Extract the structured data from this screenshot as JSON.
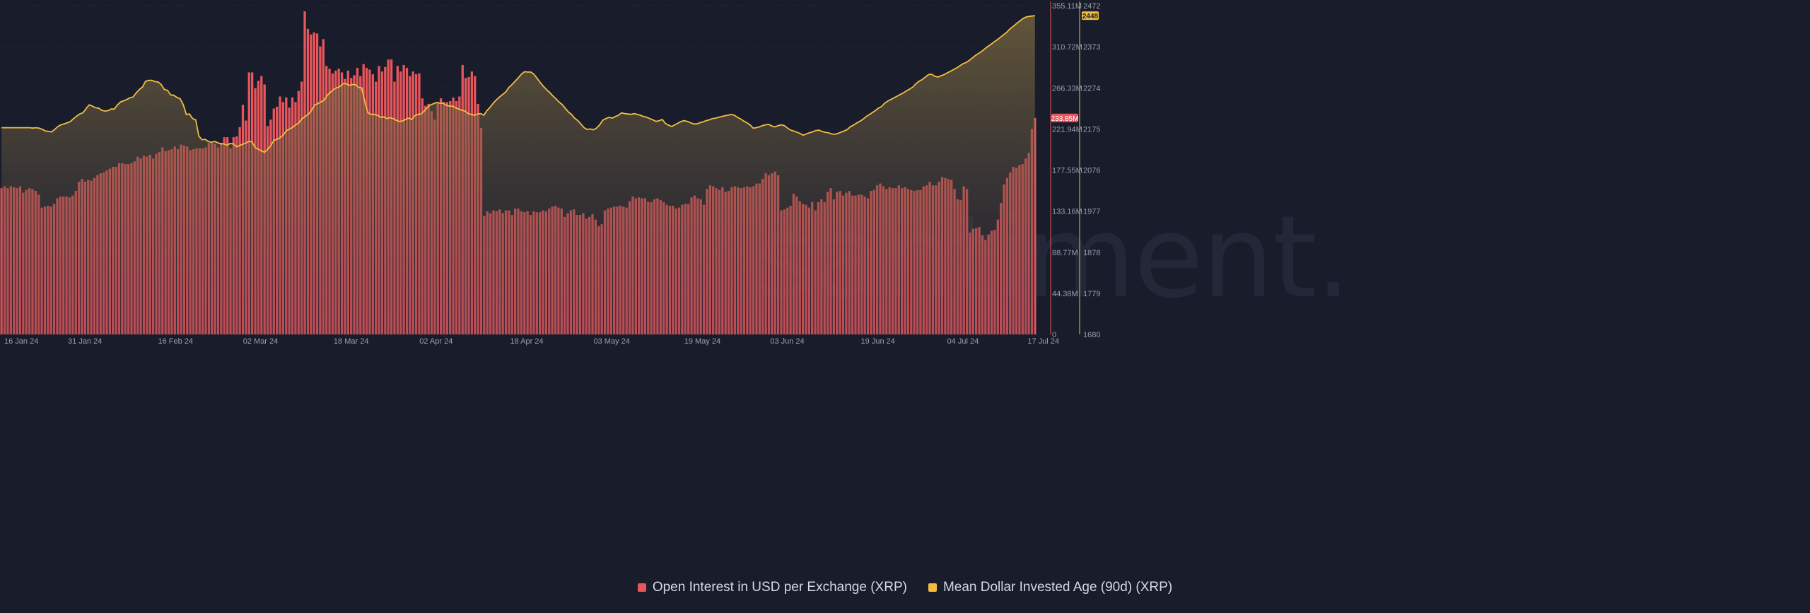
{
  "watermark": "santiment.",
  "legend": {
    "oi_label": "Open Interest in USD per Exchange (XRP)",
    "mdia_label": "Mean Dollar Invested Age (90d) (XRP)"
  },
  "colors": {
    "background": "#181c2b",
    "oi": "#e8565c",
    "mdia": "#f2bd42",
    "grid": "#2a3043"
  },
  "chart_data": {
    "type": "bar",
    "x_start": "2024-01-16",
    "x_end": "2024-07-17",
    "x_tick_labels": [
      "16 Jan 24",
      "31 Jan 24",
      "16 Feb 24",
      "02 Mar 24",
      "18 Mar 24",
      "02 Apr 24",
      "18 Apr 24",
      "03 May 24",
      "19 May 24",
      "03 Jun 24",
      "19 Jun 24",
      "04 Jul 24",
      "17 Jul 24"
    ],
    "y_left": {
      "ylim": [
        0,
        355.11
      ],
      "unit": "M",
      "tick_labels": [
        "355.11M",
        "310.72M",
        "266.33M",
        "221.94M",
        "177.55M",
        "133.16M",
        "88.77M",
        "44.38M",
        "0"
      ],
      "current_badge": "233.85M"
    },
    "y_right": {
      "ylim": [
        1680,
        2472
      ],
      "tick_labels": [
        "2472",
        "2373",
        "2274",
        "2175",
        "2076",
        "1977",
        "1878",
        "1779",
        "1680"
      ],
      "current_badge": "2448"
    },
    "series": [
      {
        "name": "Open Interest in USD per Exchange (XRP)",
        "kind": "bar",
        "axis": "left",
        "values": [
          158,
          160,
          158,
          160,
          159,
          158,
          160,
          153,
          156,
          158,
          157,
          155,
          151,
          137,
          138,
          139,
          138,
          141,
          147,
          149,
          149,
          149,
          148,
          150,
          155,
          165,
          168,
          165,
          167,
          166,
          169,
          172,
          174,
          175,
          177,
          179,
          181,
          181,
          185,
          185,
          184,
          184,
          185,
          187,
          192,
          190,
          193,
          192,
          194,
          190,
          195,
          197,
          202,
          198,
          199,
          200,
          203,
          200,
          205,
          204,
          203,
          199,
          200,
          201,
          201,
          201,
          202,
          207,
          207,
          206,
          202,
          207,
          213,
          213,
          201,
          213,
          214,
          224,
          248,
          231,
          283,
          283,
          266,
          274,
          279,
          270,
          225,
          232,
          244,
          246,
          257,
          251,
          256,
          245,
          256,
          251,
          263,
          273,
          349,
          330,
          324,
          326,
          325,
          311,
          319,
          290,
          287,
          282,
          285,
          287,
          283,
          276,
          285,
          277,
          280,
          288,
          279,
          292,
          288,
          286,
          281,
          273,
          290,
          284,
          289,
          297,
          297,
          273,
          290,
          284,
          291,
          288,
          279,
          284,
          281,
          282,
          255,
          247,
          249,
          241,
          232,
          250,
          255,
          251,
          251,
          252,
          256,
          252,
          257,
          291,
          277,
          278,
          284,
          279,
          249,
          223,
          128,
          133,
          131,
          134,
          133,
          135,
          131,
          134,
          134,
          129,
          136,
          136,
          133,
          132,
          133,
          129,
          133,
          132,
          132,
          134,
          133,
          136,
          138,
          139,
          137,
          136,
          127,
          131,
          134,
          135,
          129,
          129,
          131,
          125,
          127,
          130,
          124,
          117,
          119,
          134,
          136,
          137,
          138,
          138,
          139,
          138,
          137,
          144,
          149,
          147,
          148,
          147,
          147,
          143,
          143,
          146,
          147,
          145,
          143,
          140,
          139,
          139,
          136,
          137,
          140,
          141,
          141,
          148,
          150,
          147,
          146,
          140,
          157,
          161,
          160,
          158,
          156,
          159,
          154,
          155,
          159,
          160,
          159,
          158,
          159,
          160,
          159,
          160,
          163,
          163,
          168,
          174,
          172,
          174,
          176,
          172,
          134,
          135,
          137,
          139,
          152,
          149,
          144,
          141,
          140,
          137,
          143,
          134,
          143,
          146,
          143,
          154,
          158,
          146,
          154,
          155,
          150,
          153,
          155,
          150,
          150,
          151,
          151,
          149,
          147,
          155,
          156,
          161,
          163,
          160,
          157,
          159,
          158,
          158,
          161,
          158,
          159,
          157,
          156,
          155,
          156,
          156,
          160,
          161,
          165,
          161,
          161,
          165,
          170,
          169,
          168,
          167,
          157,
          146,
          145,
          160,
          157,
          110,
          114,
          115,
          116,
          107,
          102,
          108,
          112,
          113,
          124,
          142,
          162,
          169,
          175,
          181,
          180,
          183,
          184,
          190,
          196,
          222,
          233.85
        ]
      },
      {
        "name": "Mean Dollar Invested Age (90d) (XRP)",
        "kind": "area",
        "axis": "right",
        "values": [
          2178,
          2178,
          2178,
          2178,
          2178,
          2178,
          2178,
          2178,
          2178,
          2178,
          2177,
          2178,
          2177,
          2174,
          2170,
          2169,
          2168,
          2174,
          2181,
          2185,
          2187,
          2190,
          2193,
          2200,
          2206,
          2211,
          2214,
          2224,
          2233,
          2230,
          2226,
          2225,
          2220,
          2218,
          2219,
          2223,
          2223,
          2233,
          2240,
          2243,
          2246,
          2250,
          2252,
          2262,
          2270,
          2276,
          2290,
          2292,
          2292,
          2289,
          2288,
          2282,
          2270,
          2268,
          2257,
          2256,
          2251,
          2248,
          2234,
          2210,
          2211,
          2200,
          2197,
          2158,
          2149,
          2150,
          2145,
          2143,
          2145,
          2142,
          2139,
          2139,
          2136,
          2140,
          2139,
          2132,
          2135,
          2138,
          2141,
          2145,
          2144,
          2130,
          2126,
          2122,
          2119,
          2126,
          2135,
          2148,
          2150,
          2154,
          2161,
          2171,
          2175,
          2179,
          2185,
          2190,
          2200,
          2205,
          2211,
          2220,
          2233,
          2236,
          2240,
          2244,
          2256,
          2263,
          2270,
          2274,
          2277,
          2284,
          2284,
          2280,
          2282,
          2282,
          2275,
          2274,
          2240,
          2214,
          2210,
          2210,
          2208,
          2203,
          2204,
          2200,
          2202,
          2200,
          2196,
          2193,
          2194,
          2198,
          2201,
          2198,
          2207,
          2210,
          2211,
          2218,
          2227,
          2233,
          2236,
          2239,
          2237,
          2237,
          2232,
          2230,
          2230,
          2226,
          2223,
          2220,
          2218,
          2212,
          2210,
          2208,
          2211,
          2212,
          2208,
          2219,
          2227,
          2237,
          2245,
          2252,
          2258,
          2264,
          2275,
          2282,
          2290,
          2298,
          2307,
          2313,
          2312,
          2312,
          2307,
          2297,
          2287,
          2278,
          2270,
          2263,
          2255,
          2248,
          2240,
          2234,
          2225,
          2216,
          2210,
          2201,
          2195,
          2187,
          2178,
          2174,
          2175,
          2173,
          2177,
          2185,
          2196,
          2200,
          2203,
          2201,
          2205,
          2208,
          2214,
          2212,
          2211,
          2210,
          2212,
          2210,
          2208,
          2205,
          2203,
          2200,
          2197,
          2193,
          2195,
          2198,
          2188,
          2184,
          2181,
          2185,
          2189,
          2193,
          2195,
          2193,
          2190,
          2187,
          2187,
          2190,
          2192,
          2195,
          2197,
          2200,
          2201,
          2203,
          2205,
          2207,
          2208,
          2210,
          2208,
          2203,
          2199,
          2194,
          2190,
          2185,
          2177,
          2178,
          2180,
          2183,
          2185,
          2186,
          2182,
          2180,
          2183,
          2185,
          2183,
          2177,
          2172,
          2170,
          2167,
          2164,
          2160,
          2163,
          2166,
          2168,
          2171,
          2172,
          2169,
          2167,
          2166,
          2163,
          2162,
          2164,
          2167,
          2170,
          2173,
          2180,
          2184,
          2189,
          2193,
          2198,
          2204,
          2209,
          2214,
          2219,
          2225,
          2229,
          2237,
          2242,
          2246,
          2250,
          2254,
          2258,
          2262,
          2267,
          2271,
          2276,
          2284,
          2290,
          2294,
          2300,
          2306,
          2307,
          2302,
          2300,
          2303,
          2306,
          2310,
          2314,
          2318,
          2322,
          2327,
          2332,
          2335,
          2340,
          2346,
          2352,
          2357,
          2362,
          2368,
          2374,
          2379,
          2385,
          2390,
          2396,
          2402,
          2408,
          2416,
          2422,
          2428,
          2434,
          2440,
          2444,
          2446,
          2447,
          2448
        ]
      }
    ],
    "grid": true,
    "legend_position": "bottom-center"
  }
}
